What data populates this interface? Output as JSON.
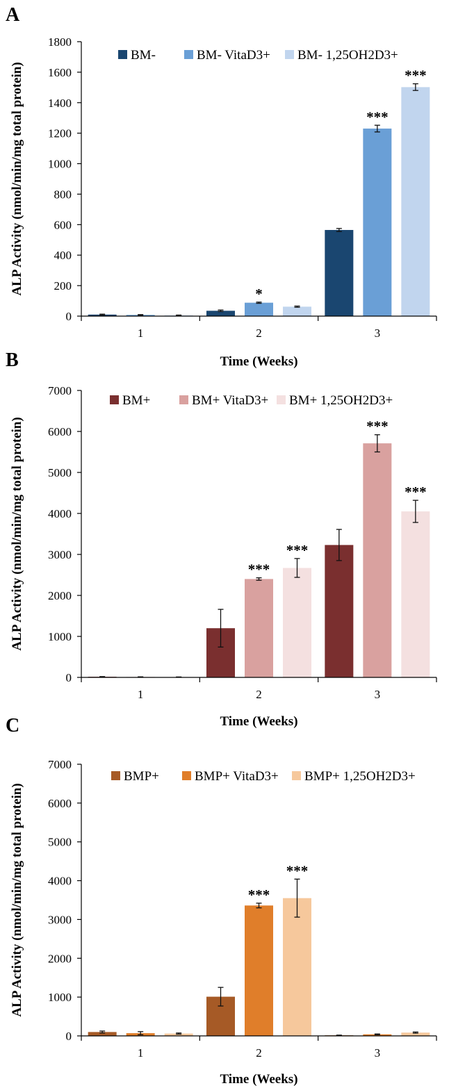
{
  "chart_data": [
    {
      "type": "bar",
      "panel_label": "A",
      "categories": [
        "1",
        "2",
        "3"
      ],
      "xlabel": "Time (Weeks)",
      "ylabel": "ALP Activity (nmol/min/mg total protein)",
      "ylim": [
        0,
        1800
      ],
      "yticks": [
        0,
        200,
        400,
        600,
        800,
        1000,
        1200,
        1400,
        1600,
        1800
      ],
      "grid": false,
      "legend": "top",
      "series": [
        {
          "name": "BM-",
          "color": "#1a4670",
          "values": [
            10,
            35,
            565
          ],
          "errors": [
            3,
            5,
            10
          ],
          "annotations": [
            "",
            "",
            ""
          ]
        },
        {
          "name": "BM- VitaD3+",
          "color": "#6a9fd6",
          "values": [
            8,
            88,
            1230
          ],
          "errors": [
            2,
            4,
            22
          ],
          "annotations": [
            "",
            "*",
            "***"
          ]
        },
        {
          "name": "BM- 1,25OH2D3+",
          "color": "#c1d5ee",
          "values": [
            5,
            62,
            1502
          ],
          "errors": [
            2,
            4,
            22
          ],
          "annotations": [
            "",
            "",
            "***"
          ]
        }
      ]
    },
    {
      "type": "bar",
      "panel_label": "B",
      "categories": [
        "1",
        "2",
        "3"
      ],
      "xlabel": "Time (Weeks)",
      "ylabel": "ALP Activity (nmol/min/mg total protein)",
      "ylim": [
        0,
        7000
      ],
      "yticks": [
        0,
        1000,
        2000,
        3000,
        4000,
        5000,
        6000,
        7000
      ],
      "grid": false,
      "legend": "top",
      "series": [
        {
          "name": "BM+",
          "color": "#7a2f2f",
          "values": [
            15,
            1200,
            3230
          ],
          "errors": [
            5,
            460,
            380
          ],
          "annotations": [
            "",
            "",
            ""
          ]
        },
        {
          "name": "BM+ VitaD3+",
          "color": "#d9a19f",
          "values": [
            10,
            2400,
            5710
          ],
          "errors": [
            4,
            30,
            210
          ],
          "annotations": [
            "",
            "***",
            "***"
          ]
        },
        {
          "name": "BM+ 1,25OH2D3+",
          "color": "#f4e0e0",
          "values": [
            8,
            2670,
            4050
          ],
          "errors": [
            3,
            230,
            270
          ],
          "annotations": [
            "",
            "***",
            "***"
          ]
        }
      ]
    },
    {
      "type": "bar",
      "panel_label": "C",
      "categories": [
        "1",
        "2",
        "3"
      ],
      "xlabel": "Time (Weeks)",
      "ylabel": "ALP Activity (nmol/min/mg total protein)",
      "ylim": [
        0,
        7000
      ],
      "yticks": [
        0,
        1000,
        2000,
        3000,
        4000,
        5000,
        6000,
        7000
      ],
      "grid": false,
      "legend": "top",
      "series": [
        {
          "name": "BMP+",
          "color": "#a65a26",
          "values": [
            100,
            1010,
            15
          ],
          "errors": [
            25,
            240,
            5
          ],
          "annotations": [
            "",
            "",
            ""
          ]
        },
        {
          "name": "BMP+ VitaD3+",
          "color": "#e07e2a",
          "values": [
            70,
            3360,
            40
          ],
          "errors": [
            40,
            60,
            10
          ],
          "annotations": [
            "",
            "***",
            ""
          ]
        },
        {
          "name": "BMP+ 1,25OH2D3+",
          "color": "#f6c89c",
          "values": [
            60,
            3550,
            85
          ],
          "errors": [
            15,
            490,
            15
          ],
          "annotations": [
            "",
            "***",
            ""
          ]
        }
      ]
    }
  ]
}
